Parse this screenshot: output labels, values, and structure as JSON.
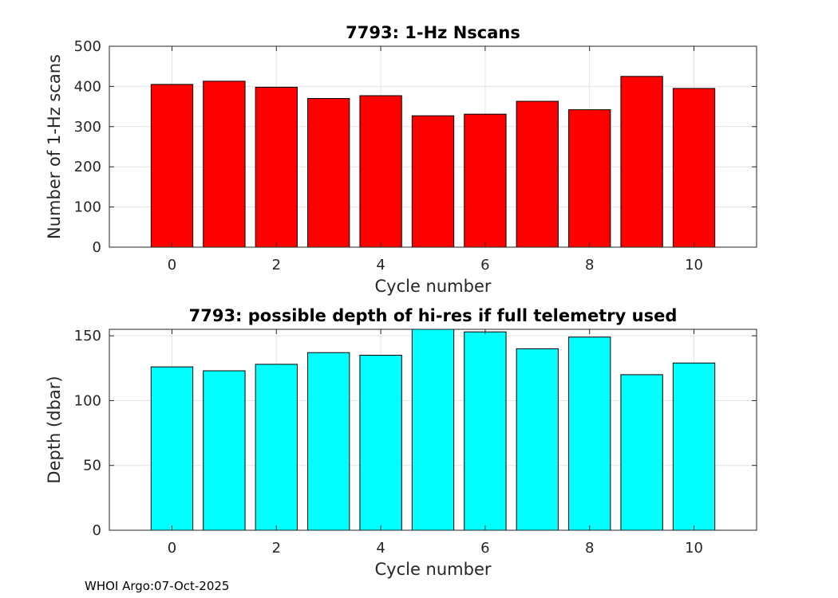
{
  "chart_data": [
    {
      "type": "bar",
      "title": "7793: 1-Hz Nscans",
      "xlabel": "Cycle number",
      "ylabel": "Number of 1-Hz scans",
      "x": [
        0,
        1,
        2,
        3,
        4,
        5,
        6,
        7,
        8,
        9,
        10
      ],
      "values": [
        405,
        413,
        398,
        370,
        377,
        327,
        331,
        363,
        342,
        425,
        395
      ],
      "xlim": [
        -1.2,
        11.2
      ],
      "ylim": [
        0,
        500
      ],
      "xticks": [
        0,
        2,
        4,
        6,
        8,
        10
      ],
      "yticks": [
        0,
        100,
        200,
        300,
        400,
        500
      ],
      "bar_color": "#ff0000",
      "grid": true
    },
    {
      "type": "bar",
      "title": "7793: possible depth of hi-res if full telemetry used",
      "xlabel": "Cycle number",
      "ylabel": "Depth (dbar)",
      "x": [
        0,
        1,
        2,
        3,
        4,
        5,
        6,
        7,
        8,
        9,
        10
      ],
      "values": [
        126,
        123,
        128,
        137,
        135,
        155,
        153,
        140,
        149,
        120,
        129
      ],
      "xlim": [
        -1.2,
        11.2
      ],
      "ylim": [
        0,
        155
      ],
      "xticks": [
        0,
        2,
        4,
        6,
        8,
        10
      ],
      "yticks": [
        0,
        50,
        100,
        150
      ],
      "bar_color": "#00ffff",
      "grid": true
    }
  ],
  "footer": {
    "text": "WHOI Argo:07-Oct-2025"
  }
}
